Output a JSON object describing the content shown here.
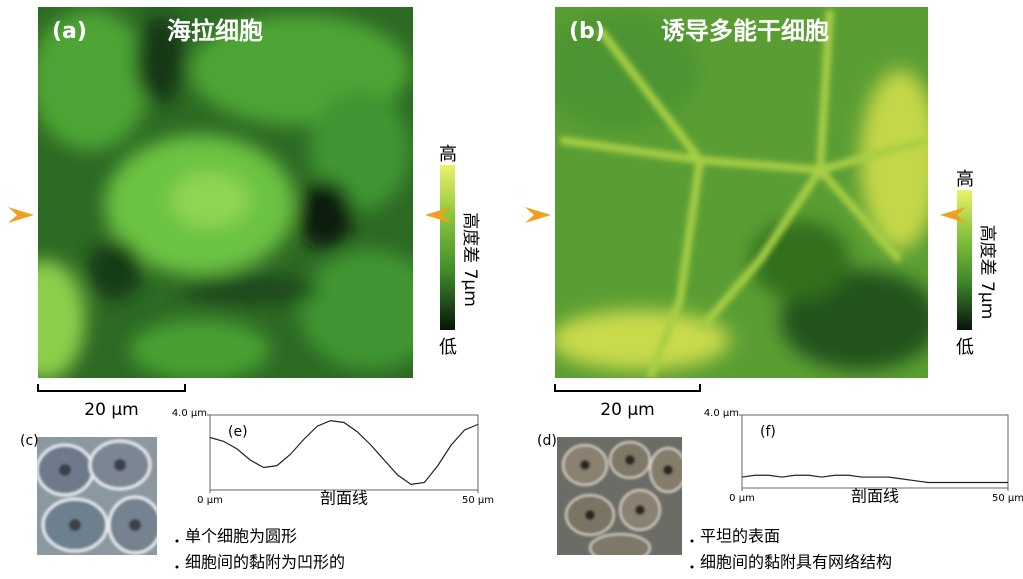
{
  "panels": [
    {
      "label": "(a)",
      "title": "海拉细胞",
      "colorbar_high": "高",
      "colorbar_low": "低",
      "colorbar_label": "高度差 7μm",
      "scale_bar": "20 μm",
      "photo_label": "(c)",
      "profile": {
        "type": "line",
        "label": "(e)",
        "xlabel": "剖面线",
        "xlim": [
          0,
          50
        ],
        "ylim": [
          0,
          4
        ],
        "xticks": [
          {
            "value": 0,
            "label": "0 μm"
          },
          {
            "value": 50,
            "label": "50 μm"
          }
        ],
        "yticks": [
          {
            "value": 4,
            "label": "4.0 μm"
          }
        ],
        "x": [
          0,
          2.5,
          5,
          7.5,
          10,
          12.5,
          15,
          17.5,
          20,
          22.5,
          25,
          27.5,
          30,
          32.5,
          35,
          37.5,
          40,
          42.5,
          45,
          47.5,
          50
        ],
        "values": [
          2.8,
          2.6,
          2.2,
          1.6,
          1.2,
          1.3,
          1.9,
          2.7,
          3.4,
          3.7,
          3.6,
          3.1,
          2.4,
          1.6,
          0.8,
          0.3,
          0.4,
          1.3,
          2.4,
          3.2,
          3.5
        ],
        "color": "#222222"
      },
      "notes": [
        "单个细胞为圆形",
        "细胞间的黏附为凹形的"
      ]
    },
    {
      "label": "(b)",
      "title": "诱导多能干细胞",
      "colorbar_high": "高",
      "colorbar_low": "低",
      "colorbar_label": "高度差 7μm",
      "scale_bar": "20 μm",
      "photo_label": "(d)",
      "profile": {
        "type": "line",
        "label": "(f)",
        "xlabel": "剖面线",
        "xlim": [
          0,
          50
        ],
        "ylim": [
          0,
          4
        ],
        "xticks": [
          {
            "value": 0,
            "label": "0 μm"
          },
          {
            "value": 50,
            "label": "50 μm"
          }
        ],
        "yticks": [
          {
            "value": 4,
            "label": "4.0 μm"
          }
        ],
        "x": [
          0,
          2.5,
          5,
          7.5,
          10,
          12.5,
          15,
          17.5,
          20,
          22.5,
          25,
          27.5,
          30,
          32.5,
          35,
          37.5,
          40,
          42.5,
          45,
          47.5,
          50
        ],
        "values": [
          0.6,
          0.7,
          0.7,
          0.6,
          0.7,
          0.7,
          0.6,
          0.7,
          0.7,
          0.6,
          0.6,
          0.6,
          0.5,
          0.4,
          0.3,
          0.3,
          0.3,
          0.3,
          0.3,
          0.3,
          0.3
        ],
        "color": "#222222"
      },
      "notes": [
        "平坦的表面",
        "细胞间的黏附具有网络结构"
      ]
    }
  ]
}
